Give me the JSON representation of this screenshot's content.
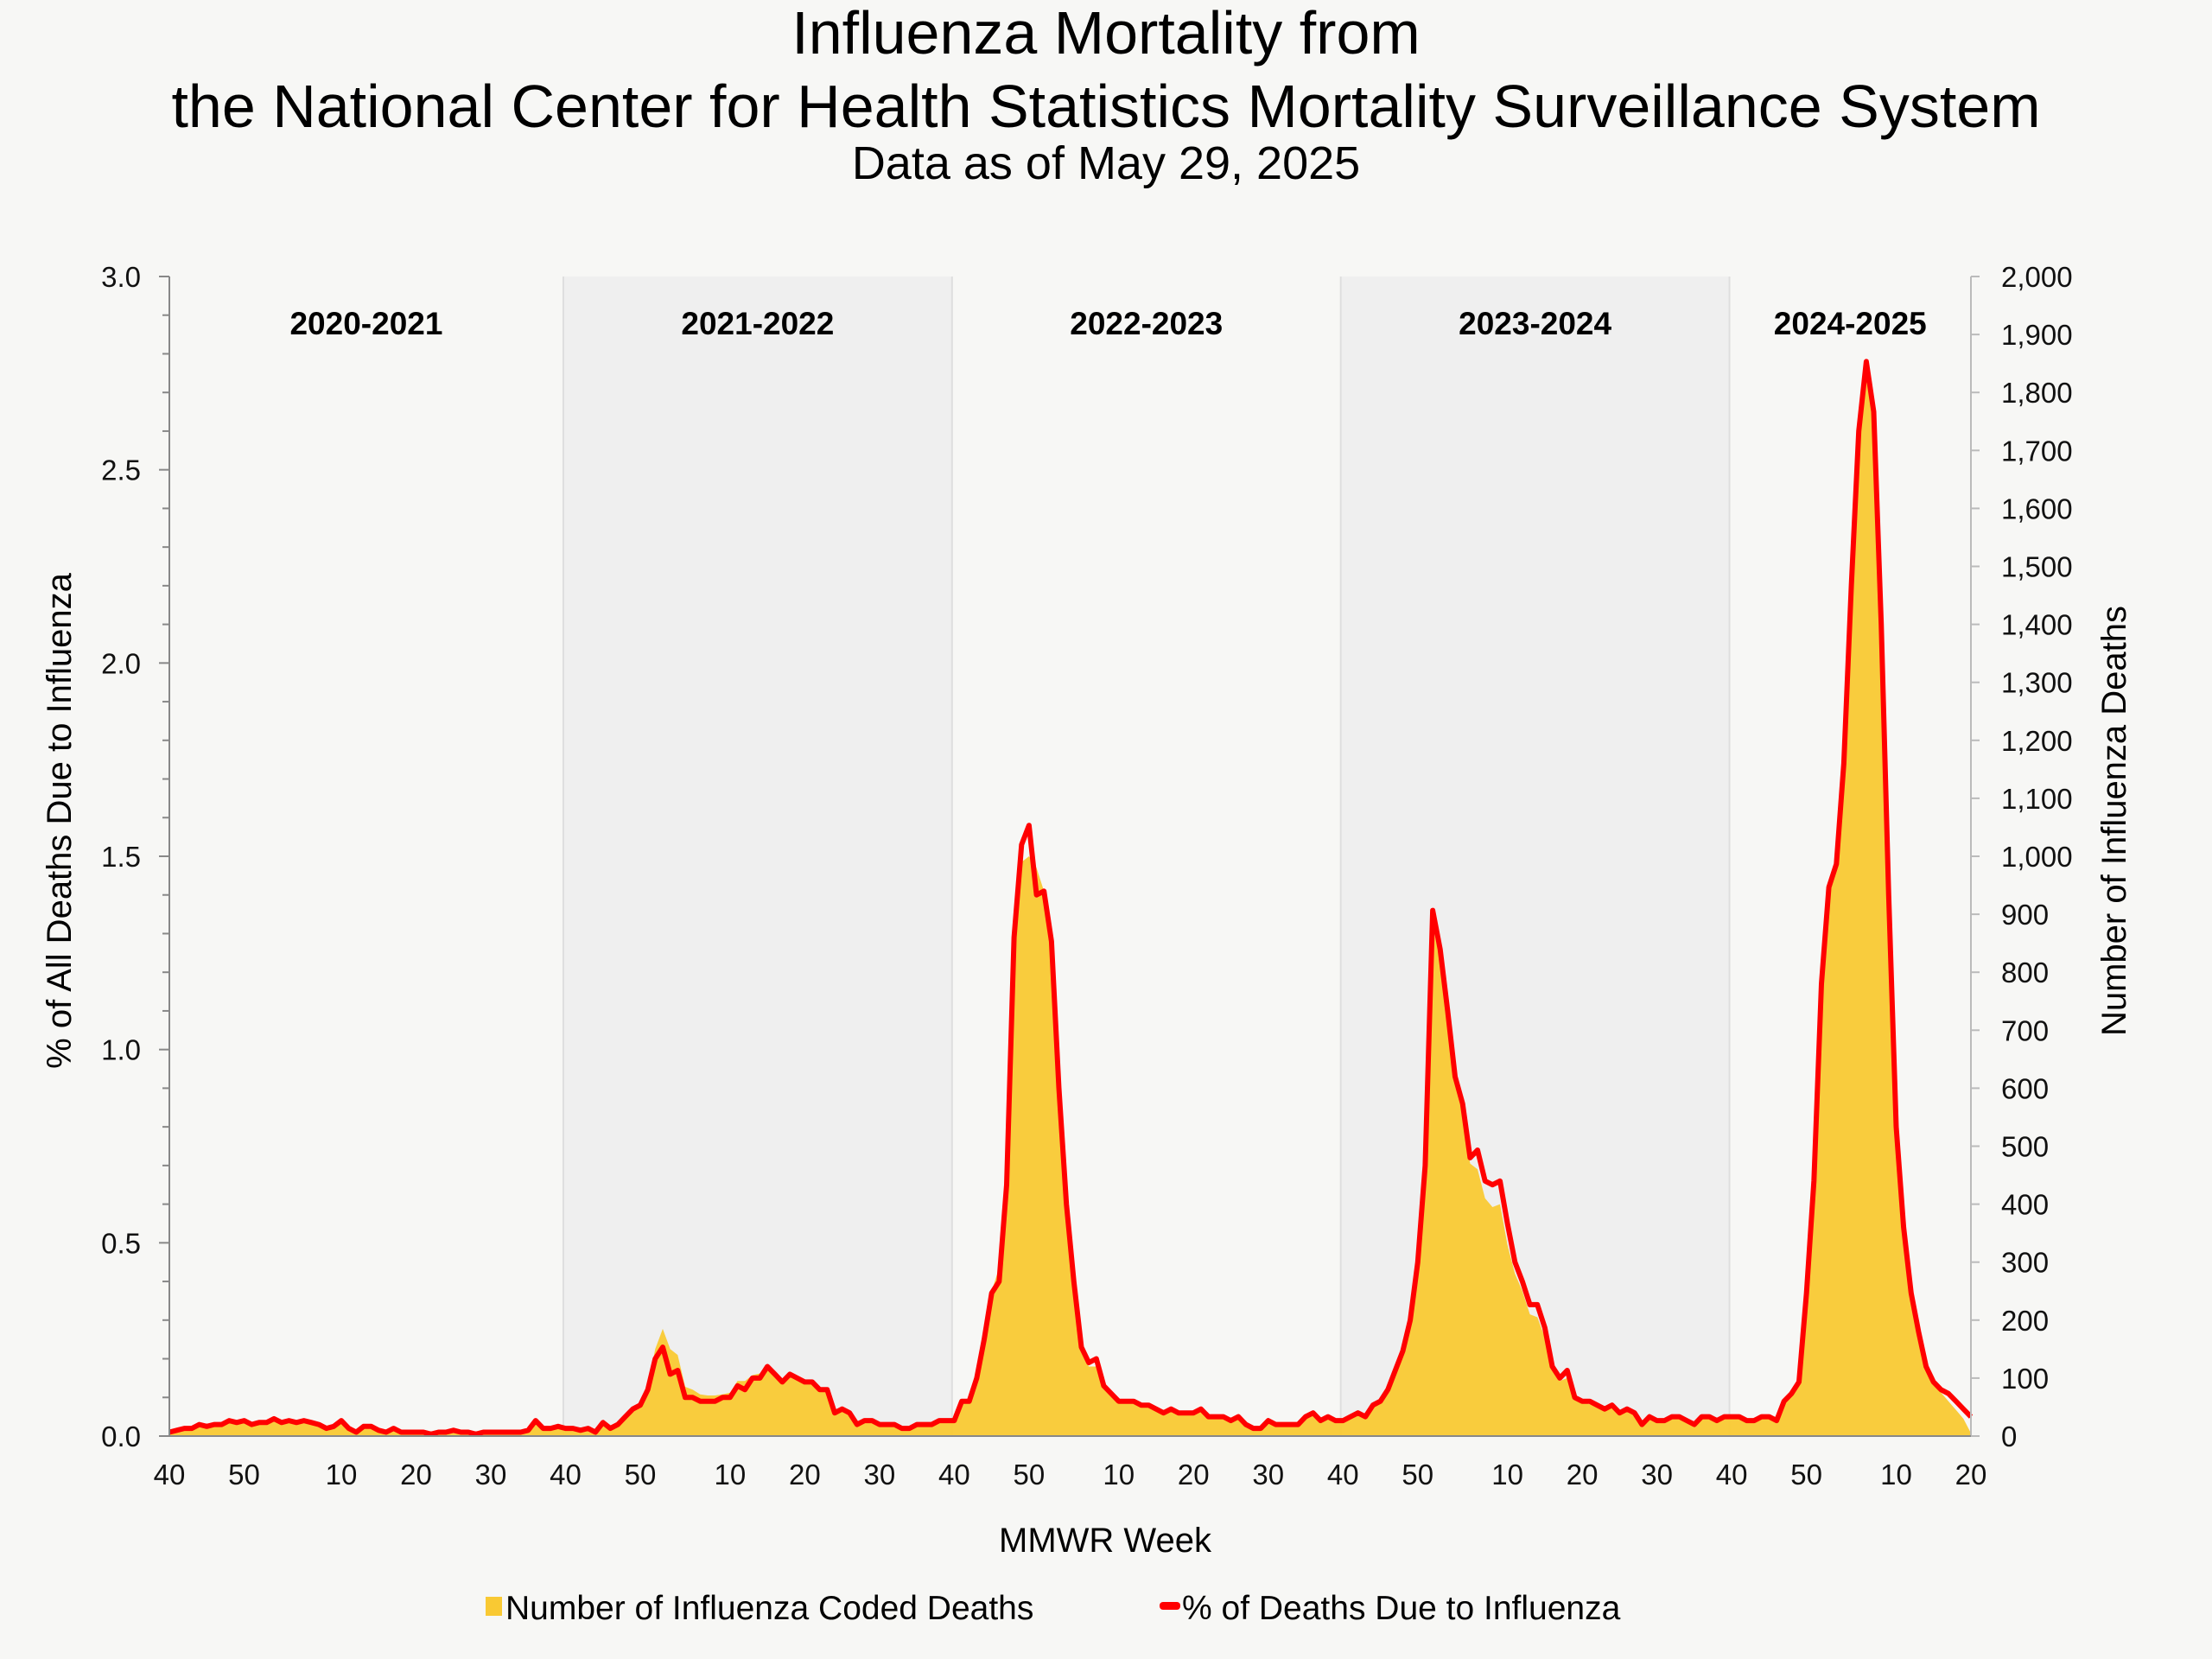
{
  "chart_data": {
    "type": "area+line",
    "title_line1": "Influenza Mortality from",
    "title_line2": "the National Center for Health Statistics Mortality Surveillance System",
    "subtitle": "Data as of May 29, 2025",
    "xlabel": "MMWR Week",
    "ylabel_left": "% of All Deaths Due to Influenza",
    "ylabel_right": "Number of Influenza Deaths",
    "ylim_left": [
      0,
      3.0
    ],
    "ylim_right": [
      0,
      2000
    ],
    "left_ticks": [
      "0.0",
      "0.5",
      "1.0",
      "1.5",
      "2.0",
      "2.5",
      "3.0"
    ],
    "right_ticks": [
      "0",
      "100",
      "200",
      "300",
      "400",
      "500",
      "600",
      "700",
      "800",
      "900",
      "1,000",
      "1,100",
      "1,200",
      "1,300",
      "1,400",
      "1,500",
      "1,600",
      "1,700",
      "1,800",
      "1,900",
      "2,000"
    ],
    "grid": false,
    "legend_placement": "bottom",
    "colors": {
      "deaths_area": "#f9c933",
      "pct_line": "#ff0000",
      "shaded_season": "#efefef",
      "background": "#f7f7f5"
    },
    "legend": [
      "Number of Influenza Coded Deaths",
      "% of Deaths Due to Influenza"
    ],
    "seasons": [
      {
        "label": "2020-2021",
        "shaded": false,
        "first_week": 40,
        "weeks_in_start_year": 53,
        "last_week": 39,
        "tick_labels": [
          "40",
          "50",
          "10",
          "20",
          "30"
        ],
        "pct": [
          0.01,
          0.015,
          0.02,
          0.02,
          0.03,
          0.025,
          0.03,
          0.03,
          0.04,
          0.035,
          0.04,
          0.03,
          0.035,
          0.035,
          0.045,
          0.035,
          0.04,
          0.035,
          0.04,
          0.035,
          0.03,
          0.02,
          0.025,
          0.04,
          0.02,
          0.01,
          0.025,
          0.025,
          0.015,
          0.01,
          0.02,
          0.01,
          0.01,
          0.01,
          0.01,
          0.005,
          0.01,
          0.01,
          0.015,
          0.01,
          0.01,
          0.005,
          0.01,
          0.01,
          0.01,
          0.01,
          0.01,
          0.01,
          0.015,
          0.04,
          0.02,
          0.02,
          0.025
        ],
        "deaths": [
          7,
          10,
          13,
          14,
          20,
          17,
          21,
          21,
          28,
          24,
          28,
          21,
          25,
          25,
          32,
          25,
          28,
          24,
          28,
          24,
          20,
          14,
          17,
          27,
          14,
          7,
          17,
          17,
          10,
          7,
          13,
          7,
          7,
          7,
          7,
          4,
          7,
          7,
          10,
          7,
          7,
          4,
          7,
          7,
          7,
          7,
          7,
          7,
          10,
          26,
          13,
          13,
          16
        ]
      },
      {
        "label": "2021-2022",
        "shaded": true,
        "first_week": 40,
        "weeks_in_start_year": 52,
        "last_week": 39,
        "tick_labels": [
          "40",
          "50",
          "10",
          "20",
          "30"
        ],
        "pct": [
          0.02,
          0.02,
          0.015,
          0.02,
          0.01,
          0.035,
          0.02,
          0.03,
          0.05,
          0.07,
          0.08,
          0.12,
          0.2,
          0.23,
          0.16,
          0.17,
          0.1,
          0.1,
          0.09,
          0.09,
          0.09,
          0.1,
          0.1,
          0.13,
          0.12,
          0.15,
          0.15,
          0.18,
          0.16,
          0.14,
          0.16,
          0.15,
          0.14,
          0.14,
          0.12,
          0.12,
          0.06,
          0.07,
          0.06,
          0.03,
          0.04,
          0.04,
          0.03,
          0.03,
          0.03,
          0.02,
          0.02,
          0.03,
          0.03,
          0.03,
          0.04,
          0.04
        ],
        "deaths": [
          13,
          13,
          10,
          13,
          7,
          23,
          13,
          20,
          33,
          47,
          55,
          85,
          150,
          185,
          150,
          140,
          85,
          80,
          72,
          70,
          70,
          72,
          75,
          95,
          95,
          105,
          108,
          120,
          110,
          95,
          105,
          100,
          95,
          92,
          85,
          80,
          42,
          47,
          40,
          20,
          25,
          25,
          20,
          20,
          18,
          14,
          14,
          18,
          20,
          20,
          25,
          27
        ]
      },
      {
        "label": "2022-2023",
        "shaded": false,
        "first_week": 40,
        "weeks_in_start_year": 52,
        "last_week": 39,
        "tick_labels": [
          "40",
          "50",
          "10",
          "20",
          "30"
        ],
        "pct": [
          0.04,
          0.09,
          0.09,
          0.15,
          0.25,
          0.37,
          0.4,
          0.65,
          1.29,
          1.53,
          1.58,
          1.4,
          1.41,
          1.28,
          0.9,
          0.6,
          0.4,
          0.23,
          0.19,
          0.2,
          0.13,
          0.11,
          0.09,
          0.09,
          0.09,
          0.08,
          0.08,
          0.07,
          0.06,
          0.07,
          0.06,
          0.06,
          0.06,
          0.07,
          0.05,
          0.05,
          0.05,
          0.04,
          0.05,
          0.03,
          0.02,
          0.02,
          0.04,
          0.03,
          0.03,
          0.03,
          0.03,
          0.05,
          0.06,
          0.04,
          0.05,
          0.04
        ],
        "deaths": [
          25,
          55,
          60,
          100,
          170,
          250,
          290,
          460,
          870,
          990,
          1000,
          980,
          940,
          860,
          650,
          420,
          270,
          150,
          120,
          120,
          85,
          70,
          60,
          60,
          58,
          55,
          52,
          47,
          42,
          45,
          40,
          40,
          38,
          42,
          33,
          33,
          33,
          27,
          32,
          20,
          15,
          14,
          25,
          20,
          20,
          20,
          20,
          30,
          38,
          27,
          32,
          28
        ]
      },
      {
        "label": "2023-2024",
        "shaded": true,
        "first_week": 40,
        "weeks_in_start_year": 52,
        "last_week": 39,
        "tick_labels": [
          "40",
          "50",
          "10",
          "20",
          "30"
        ],
        "pct": [
          0.04,
          0.05,
          0.06,
          0.05,
          0.08,
          0.09,
          0.12,
          0.17,
          0.22,
          0.3,
          0.45,
          0.7,
          1.36,
          1.26,
          1.1,
          0.93,
          0.86,
          0.72,
          0.74,
          0.66,
          0.65,
          0.66,
          0.55,
          0.45,
          0.4,
          0.34,
          0.34,
          0.28,
          0.18,
          0.15,
          0.17,
          0.1,
          0.09,
          0.09,
          0.08,
          0.07,
          0.08,
          0.06,
          0.07,
          0.06,
          0.03,
          0.05,
          0.04,
          0.04,
          0.05,
          0.05,
          0.04,
          0.03,
          0.05,
          0.05,
          0.04,
          0.05
        ],
        "deaths": [
          28,
          35,
          42,
          38,
          55,
          62,
          85,
          120,
          155,
          200,
          300,
          470,
          880,
          820,
          700,
          610,
          560,
          470,
          460,
          410,
          395,
          400,
          330,
          280,
          250,
          210,
          205,
          170,
          115,
          95,
          100,
          65,
          58,
          55,
          50,
          45,
          50,
          38,
          42,
          38,
          20,
          32,
          26,
          25,
          32,
          32,
          26,
          20,
          32,
          32,
          26,
          30
        ]
      },
      {
        "label": "2024-2025",
        "shaded": false,
        "first_week": 40,
        "weeks_in_start_year": 52,
        "last_week": 20,
        "tick_labels": [
          "40",
          "50",
          "10",
          "20"
        ],
        "pct": [
          0.05,
          0.05,
          0.04,
          0.04,
          0.05,
          0.05,
          0.04,
          0.09,
          0.11,
          0.14,
          0.37,
          0.66,
          1.17,
          1.42,
          1.48,
          1.74,
          2.2,
          2.6,
          2.78,
          2.65,
          2.1,
          1.4,
          0.8,
          0.54,
          0.37,
          0.27,
          0.18,
          0.14,
          0.12,
          0.11,
          0.09,
          0.07,
          0.05
        ],
        "deaths": [
          32,
          32,
          26,
          26,
          32,
          32,
          26,
          58,
          75,
          95,
          250,
          440,
          780,
          950,
          990,
          1160,
          1470,
          1750,
          1840,
          1760,
          1400,
          930,
          530,
          350,
          240,
          175,
          120,
          90,
          75,
          60,
          45,
          30,
          5
        ]
      }
    ]
  }
}
